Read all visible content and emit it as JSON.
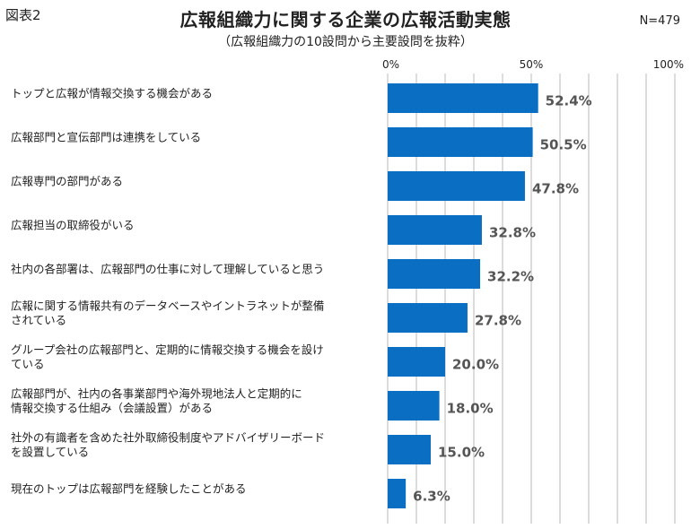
{
  "figure_label": "図表2",
  "n_label": "N=479",
  "chart_data": {
    "type": "bar",
    "orientation": "horizontal",
    "title": "広報組織力に関する企業の広報活動実態",
    "subtitle": "（広報組織力の10設問から主要設問を抜粋）",
    "xlim": [
      0,
      100
    ],
    "ticks": [
      {
        "value": 0,
        "label": "0%"
      },
      {
        "value": 50,
        "label": "50%"
      },
      {
        "value": 100,
        "label": "100%"
      }
    ],
    "gridlines": [
      0,
      10,
      20,
      30,
      40,
      50,
      60,
      70,
      80,
      90,
      100
    ],
    "bar_color": "#0a6fc2",
    "categories": [
      [
        "トップと広報が情報交換する機会がある"
      ],
      [
        "広報部門と宣伝部門は連携をしている"
      ],
      [
        "広報専門の部門がある"
      ],
      [
        "広報担当の取締役がいる"
      ],
      [
        "社内の各部署は、広報部門の仕事に対して理解していると思う"
      ],
      [
        "広報に関する情報共有のデータベースやイントラネットが整備",
        "されている"
      ],
      [
        "グループ会社の広報部門と、定期的に情報交換する機会を設け",
        "ている"
      ],
      [
        "広報部門が、社内の各事業部門や海外現地法人と定期的に",
        "情報交換する仕組み（会議設置）がある"
      ],
      [
        "社外の有識者を含めた社外取締役制度やアドバイザリーボード",
        "を設置している"
      ],
      [
        "現在のトップは広報部門を経験したことがある"
      ]
    ],
    "values": [
      52.4,
      50.5,
      47.8,
      32.8,
      32.2,
      27.8,
      20.0,
      18.0,
      15.0,
      6.3
    ],
    "value_labels": [
      "52.4%",
      "50.5%",
      "47.8%",
      "32.8%",
      "32.2%",
      "27.8%",
      "20.0%",
      "18.0%",
      "15.0%",
      "6.3%"
    ]
  }
}
